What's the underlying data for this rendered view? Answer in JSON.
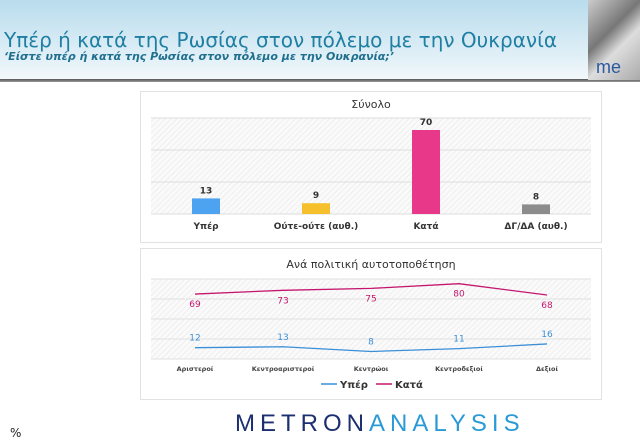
{
  "header": {
    "title": "Υπέρ ή κατά της Ρωσίας στον πόλεμο με την Ουκρανία",
    "subtitle": "‘Είστε υπέρ ή κατά της Ρωσίας στον πόλεμο με την Ουκρανία;’",
    "logo_text": "me"
  },
  "footer": {
    "brand_a": "METRON",
    "brand_b": "ANALYSIS",
    "unit": "%"
  },
  "chart_data": [
    {
      "type": "bar",
      "title": "Σύνολο",
      "categories": [
        "Υπέρ",
        "Ούτε-ούτε (αυθ.)",
        "Κατά",
        "ΔΓ/ΔΑ (αυθ.)"
      ],
      "values": [
        13,
        9,
        70,
        8
      ],
      "colors": [
        "#4da3f0",
        "#f5c02c",
        "#e8388a",
        "#8c8c8c"
      ],
      "ylim": [
        0,
        80
      ]
    },
    {
      "type": "line",
      "title": "Ανά πολιτική αυτοτοποθέτηση",
      "categories": [
        "Αριστεροί",
        "Κεντροαριστεροί",
        "Κεντρώοι",
        "Κεντροδεξιοί",
        "Δεξιοί"
      ],
      "series": [
        {
          "name": "Υπέρ",
          "values": [
            12,
            13,
            8,
            11,
            16
          ],
          "color": "#3a8fd8"
        },
        {
          "name": "Κατά",
          "values": [
            69,
            73,
            75,
            80,
            68
          ],
          "color": "#c4166e"
        }
      ],
      "ylim": [
        0,
        85
      ],
      "legend": "bottom"
    }
  ]
}
